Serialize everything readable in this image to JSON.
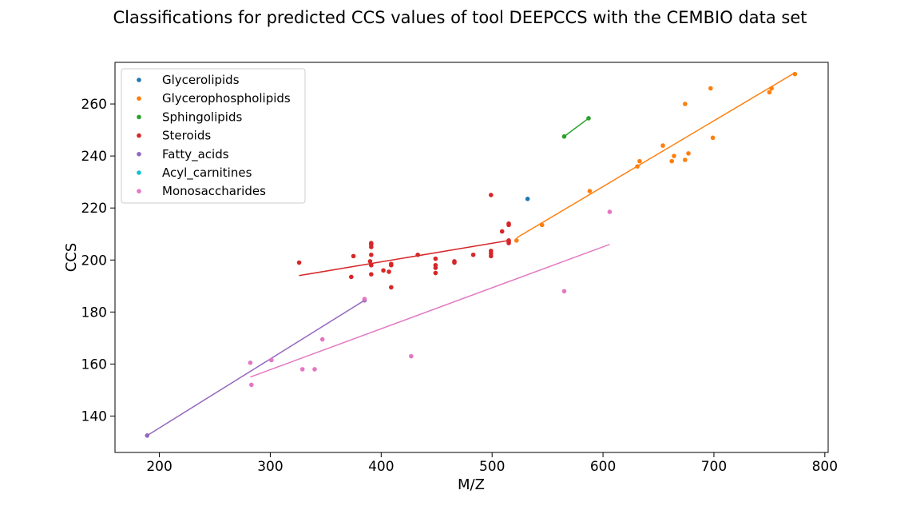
{
  "chart_data": {
    "type": "scatter",
    "title": "Classifications for predicted CCS values of tool DEEPCCS with the CEMBIO data set",
    "xlabel": "M/Z",
    "ylabel": "CCS",
    "xlim": [
      160,
      803
    ],
    "ylim": [
      126,
      276
    ],
    "xticks": [
      200,
      300,
      400,
      500,
      600,
      700,
      800
    ],
    "yticks": [
      140,
      160,
      180,
      200,
      220,
      240,
      260
    ],
    "legend_position": "top-left",
    "series": [
      {
        "name": "Glycerolipids",
        "color": "#1f77b4",
        "points": [
          [
            532,
            223.5
          ]
        ],
        "fit": null
      },
      {
        "name": "Glycerophospholipids",
        "color": "#ff7f0e",
        "points": [
          [
            522,
            207.5
          ],
          [
            545,
            213.5
          ],
          [
            588,
            226.5
          ],
          [
            631,
            236
          ],
          [
            633,
            238
          ],
          [
            654,
            244
          ],
          [
            662,
            238
          ],
          [
            664,
            240
          ],
          [
            674,
            260
          ],
          [
            674,
            238.5
          ],
          [
            677,
            241
          ],
          [
            697,
            266
          ],
          [
            699,
            247
          ],
          [
            750,
            264.5
          ],
          [
            752,
            266
          ],
          [
            773,
            271.5
          ]
        ],
        "fit": [
          [
            522,
            208.5
          ],
          [
            773,
            272
          ]
        ]
      },
      {
        "name": "Sphingolipids",
        "color": "#2ca02c",
        "points": [
          [
            565,
            247.5
          ],
          [
            587,
            254.5
          ]
        ],
        "fit": [
          [
            565,
            247.5
          ],
          [
            587,
            254.5
          ]
        ]
      },
      {
        "name": "Steroids",
        "color": "#d62728",
        "points": [
          [
            326,
            199
          ],
          [
            375,
            201.5
          ],
          [
            373,
            193.5
          ],
          [
            390,
            199.5
          ],
          [
            391,
            194.5
          ],
          [
            391,
            198
          ],
          [
            391,
            202
          ],
          [
            391,
            205
          ],
          [
            391,
            206
          ],
          [
            391,
            206.5
          ],
          [
            402,
            196
          ],
          [
            407,
            195.5
          ],
          [
            409,
            198
          ],
          [
            409,
            198.5
          ],
          [
            409,
            189.5
          ],
          [
            433,
            202
          ],
          [
            449,
            195
          ],
          [
            449,
            197
          ],
          [
            449,
            198
          ],
          [
            449,
            200.5
          ],
          [
            466,
            199
          ],
          [
            466,
            199.5
          ],
          [
            483,
            202
          ],
          [
            499,
            201.5
          ],
          [
            499,
            202.5
          ],
          [
            499,
            203.5
          ],
          [
            499,
            225
          ],
          [
            509,
            211
          ],
          [
            515,
            206.5
          ],
          [
            515,
            207
          ],
          [
            515,
            207.5
          ],
          [
            515,
            213.5
          ],
          [
            515,
            214
          ]
        ],
        "fit": [
          [
            326,
            194
          ],
          [
            515,
            207.5
          ]
        ]
      },
      {
        "name": "Fatty_acids",
        "color": "#9467bd",
        "points": [
          [
            189,
            132.5
          ],
          [
            385,
            184.5
          ]
        ],
        "fit": [
          [
            189,
            132.5
          ],
          [
            385,
            184.5
          ]
        ]
      },
      {
        "name": "Acyl_carnitines",
        "color": "#17becf",
        "points": [],
        "fit": null
      },
      {
        "name": "Monosaccharides",
        "color": "#e377c2",
        "points": [
          [
            282,
            160.5
          ],
          [
            283,
            152
          ],
          [
            301,
            161.5
          ],
          [
            329,
            158
          ],
          [
            340,
            158
          ],
          [
            347,
            169.5
          ],
          [
            385,
            185
          ],
          [
            427,
            163
          ],
          [
            565,
            188
          ],
          [
            606,
            218.5
          ]
        ],
        "fit": [
          [
            282,
            155
          ],
          [
            606,
            206
          ]
        ]
      }
    ]
  }
}
